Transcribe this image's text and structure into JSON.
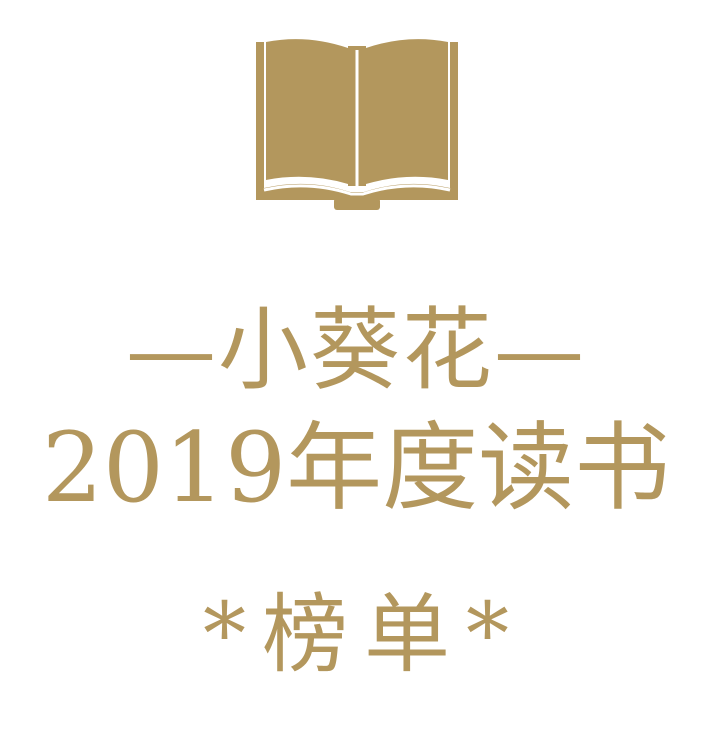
{
  "colors": {
    "gold": "#b3975d",
    "background": "#ffffff"
  },
  "logo": {
    "icon": "open-book-icon"
  },
  "title": {
    "line1": "—小葵花—",
    "line2": "2019年度读书",
    "line3": "*榜单*"
  }
}
